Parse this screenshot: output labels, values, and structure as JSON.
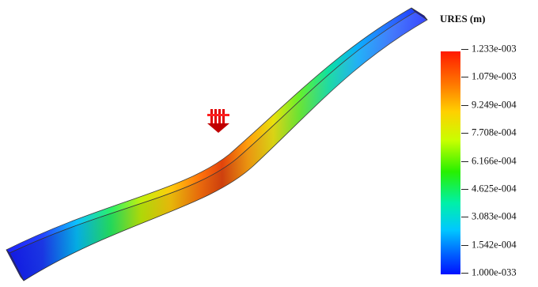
{
  "legend": {
    "title": "URES (m)",
    "ticks": [
      "1.233e-003",
      "1.079e-003",
      "9.249e-004",
      "7.708e-004",
      "6.166e-004",
      "4.625e-004",
      "3.083e-004",
      "1.542e-004",
      "1.000e-033"
    ],
    "colors": [
      "#ff1a00",
      "#ff7a00",
      "#ffd000",
      "#c8ff00",
      "#27f000",
      "#00f0a8",
      "#00c8ff",
      "#0060ff",
      "#0010ff"
    ]
  },
  "load_marker": {
    "icon": "force-arrow-icon",
    "color": "#e00000"
  }
}
